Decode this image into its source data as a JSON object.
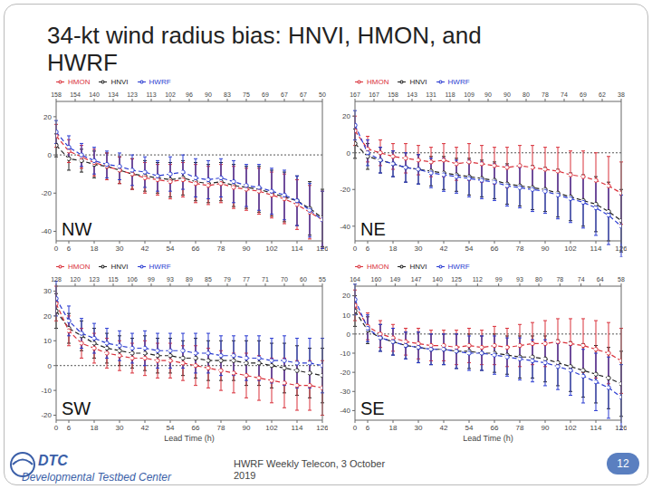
{
  "title": "34-kt wind radius bias: HNVI, HMON, and HWRF",
  "footer": {
    "logo": "DTC",
    "organization": "Developmental Testbed Center",
    "event": "HWRF Weekly Telecon, 3 October 2019",
    "page": 12
  },
  "chart_data": [
    {
      "type": "line",
      "title": "NW",
      "x": [
        0,
        6,
        12,
        18,
        24,
        30,
        36,
        42,
        48,
        54,
        60,
        66,
        72,
        78,
        84,
        90,
        96,
        102,
        108,
        114,
        120,
        126
      ],
      "xlim": [
        0,
        126
      ],
      "xticks": [
        0,
        6,
        18,
        30,
        42,
        54,
        66,
        78,
        90,
        102,
        114,
        126
      ],
      "ylim": [
        -45,
        28
      ],
      "yticks": [
        -40,
        -20,
        0,
        20
      ],
      "reference_y": 0,
      "top_ticks": [
        {
          "value": 0,
          "label": "158"
        },
        {
          "value": 9,
          "label": "154"
        },
        {
          "value": 18,
          "label": "140"
        },
        {
          "value": 27,
          "label": "134"
        },
        {
          "value": 36,
          "label": "123"
        },
        {
          "value": 45,
          "label": "113"
        },
        {
          "value": 54,
          "label": "102"
        },
        {
          "value": 63,
          "label": "96"
        },
        {
          "value": 72,
          "label": "90"
        },
        {
          "value": 81,
          "label": "83"
        },
        {
          "value": 90,
          "label": "75"
        },
        {
          "value": 99,
          "label": "69"
        },
        {
          "value": 108,
          "label": "67"
        },
        {
          "value": 117,
          "label": "67"
        },
        {
          "value": 126,
          "label": "50"
        }
      ],
      "series": [
        {
          "name": "HNVI",
          "color": "#222222",
          "line_style": "dashed",
          "marker": "circle",
          "values": [
            5,
            -2,
            -3,
            -5,
            -6,
            -8,
            -10,
            -11,
            -12,
            -13,
            -12,
            -14,
            -15,
            -14,
            -16,
            -17,
            -18,
            -20,
            -22,
            -24,
            -28,
            -33
          ],
          "errors": [
            6,
            6,
            6,
            7,
            7,
            7,
            8,
            8,
            8,
            9,
            9,
            10,
            10,
            10,
            11,
            11,
            12,
            12,
            13,
            13,
            14,
            15
          ]
        },
        {
          "name": "HMON",
          "color": "#d9303a",
          "line_style": "dashed",
          "marker": "circle",
          "values": [
            10,
            2,
            -1,
            -4,
            -6,
            -8,
            -10,
            -12,
            -13,
            -14,
            -13,
            -15,
            -16,
            -15,
            -17,
            -18,
            -19,
            -21,
            -23,
            -26,
            -30,
            -34
          ],
          "errors": [
            6,
            6,
            6,
            7,
            7,
            7,
            8,
            8,
            8,
            9,
            9,
            10,
            10,
            10,
            11,
            11,
            12,
            12,
            13,
            13,
            14,
            15
          ]
        },
        {
          "name": "HWRF",
          "color": "#2a3bd1",
          "line_style": "dashed",
          "marker": "circle",
          "values": [
            12,
            4,
            0,
            -3,
            -5,
            -6,
            -8,
            -9,
            -11,
            -10,
            -9,
            -12,
            -13,
            -12,
            -14,
            -16,
            -17,
            -19,
            -21,
            -24,
            -29,
            -34
          ],
          "errors": [
            6,
            6,
            6,
            7,
            7,
            7,
            8,
            8,
            8,
            9,
            9,
            10,
            10,
            10,
            11,
            11,
            12,
            12,
            13,
            13,
            14,
            15
          ]
        }
      ]
    },
    {
      "type": "line",
      "title": "NE",
      "x": [
        0,
        6,
        12,
        18,
        24,
        30,
        36,
        42,
        48,
        54,
        60,
        66,
        72,
        78,
        84,
        90,
        96,
        102,
        108,
        114,
        120,
        126
      ],
      "xlim": [
        0,
        126
      ],
      "xticks": [
        0,
        6,
        18,
        30,
        42,
        54,
        66,
        78,
        90,
        102,
        114,
        126
      ],
      "ylim": [
        -48,
        28
      ],
      "yticks": [
        -40,
        -20,
        0,
        20
      ],
      "reference_y": 0,
      "top_ticks": [
        {
          "value": 0,
          "label": "167"
        },
        {
          "value": 9,
          "label": "167"
        },
        {
          "value": 18,
          "label": "158"
        },
        {
          "value": 27,
          "label": "143"
        },
        {
          "value": 36,
          "label": "131"
        },
        {
          "value": 45,
          "label": "118"
        },
        {
          "value": 54,
          "label": "109"
        },
        {
          "value": 63,
          "label": "90"
        },
        {
          "value": 72,
          "label": "90"
        },
        {
          "value": 81,
          "label": "80"
        },
        {
          "value": 90,
          "label": "78"
        },
        {
          "value": 99,
          "label": "74"
        },
        {
          "value": 108,
          "label": "69"
        },
        {
          "value": 117,
          "label": "62"
        },
        {
          "value": 126,
          "label": "38"
        }
      ],
      "series": [
        {
          "name": "HNVI",
          "color": "#222222",
          "line_style": "dashed",
          "marker": "circle",
          "values": [
            5,
            -2,
            -4,
            -6,
            -8,
            -9,
            -10,
            -11,
            -12,
            -13,
            -14,
            -15,
            -17,
            -18,
            -19,
            -20,
            -22,
            -24,
            -26,
            -28,
            -32,
            -37
          ],
          "errors": [
            8,
            7,
            7,
            7,
            8,
            8,
            8,
            9,
            9,
            10,
            10,
            10,
            11,
            11,
            12,
            12,
            13,
            13,
            14,
            15,
            16,
            17
          ]
        },
        {
          "name": "HMON",
          "color": "#d9303a",
          "line_style": "dashed",
          "marker": "circle",
          "values": [
            12,
            2,
            0,
            -2,
            -3,
            -4,
            -5,
            -4,
            -6,
            -5,
            -6,
            -7,
            -8,
            -7,
            -8,
            -9,
            -10,
            -12,
            -13,
            -15,
            -18,
            -22
          ],
          "errors": [
            8,
            7,
            7,
            7,
            8,
            8,
            8,
            9,
            9,
            10,
            10,
            10,
            11,
            11,
            12,
            12,
            13,
            13,
            14,
            15,
            16,
            17
          ]
        },
        {
          "name": "HWRF",
          "color": "#2a3bd1",
          "line_style": "dashed",
          "marker": "circle",
          "values": [
            15,
            0,
            -4,
            -6,
            -8,
            -9,
            -11,
            -12,
            -13,
            -14,
            -15,
            -16,
            -18,
            -19,
            -20,
            -21,
            -23,
            -25,
            -27,
            -30,
            -34,
            -40
          ],
          "errors": [
            8,
            7,
            7,
            7,
            8,
            8,
            8,
            9,
            9,
            10,
            10,
            10,
            11,
            11,
            12,
            12,
            13,
            13,
            14,
            15,
            16,
            17
          ]
        }
      ]
    },
    {
      "type": "line",
      "title": "SW",
      "x_label": "Lead Time (h)",
      "x": [
        0,
        6,
        12,
        18,
        24,
        30,
        36,
        42,
        48,
        54,
        60,
        66,
        72,
        78,
        84,
        90,
        96,
        102,
        108,
        114,
        120,
        126
      ],
      "xlim": [
        0,
        126
      ],
      "xticks": [
        0,
        6,
        18,
        30,
        42,
        54,
        66,
        78,
        90,
        102,
        114,
        126
      ],
      "ylim": [
        -22,
        32
      ],
      "yticks": [
        -20,
        -10,
        0,
        10,
        20,
        30
      ],
      "reference_y": 0,
      "top_ticks": [
        {
          "value": 0,
          "label": "128"
        },
        {
          "value": 9,
          "label": "120"
        },
        {
          "value": 18,
          "label": "123"
        },
        {
          "value": 27,
          "label": "115"
        },
        {
          "value": 36,
          "label": "106"
        },
        {
          "value": 45,
          "label": "99"
        },
        {
          "value": 54,
          "label": "93"
        },
        {
          "value": 63,
          "label": "89"
        },
        {
          "value": 72,
          "label": "85"
        },
        {
          "value": 81,
          "label": "79"
        },
        {
          "value": 90,
          "label": "77"
        },
        {
          "value": 99,
          "label": "71"
        },
        {
          "value": 108,
          "label": "70"
        },
        {
          "value": 117,
          "label": "60"
        },
        {
          "value": 126,
          "label": "55"
        }
      ],
      "series": [
        {
          "name": "HNVI",
          "color": "#222222",
          "line_style": "dashed",
          "marker": "circle",
          "values": [
            22,
            15,
            12,
            9,
            7,
            6,
            5,
            5,
            4,
            4,
            3,
            3,
            2,
            2,
            2,
            1,
            1,
            0,
            -1,
            -2,
            -3,
            -4
          ],
          "errors": [
            7,
            6,
            6,
            6,
            6,
            6,
            6,
            7,
            7,
            7,
            7,
            8,
            8,
            8,
            8,
            9,
            9,
            9,
            10,
            10,
            10,
            11
          ]
        },
        {
          "name": "HMON",
          "color": "#d9303a",
          "line_style": "dashed",
          "marker": "circle",
          "values": [
            25,
            14,
            9,
            7,
            5,
            4,
            3,
            3,
            2,
            2,
            1,
            0,
            -1,
            -2,
            -3,
            -4,
            -5,
            -6,
            -7,
            -8,
            -8,
            -9
          ],
          "errors": [
            7,
            6,
            6,
            6,
            6,
            6,
            6,
            7,
            7,
            7,
            7,
            8,
            8,
            8,
            8,
            9,
            9,
            9,
            10,
            10,
            10,
            11
          ]
        },
        {
          "name": "HWRF",
          "color": "#2a3bd1",
          "line_style": "dashed",
          "marker": "circle",
          "values": [
            27,
            18,
            13,
            11,
            9,
            8,
            7,
            7,
            6,
            6,
            6,
            5,
            5,
            4,
            4,
            3,
            3,
            2,
            2,
            1,
            1,
            0
          ],
          "errors": [
            7,
            6,
            6,
            6,
            6,
            6,
            6,
            7,
            7,
            7,
            7,
            8,
            8,
            8,
            8,
            9,
            9,
            9,
            10,
            10,
            10,
            11
          ]
        }
      ]
    },
    {
      "type": "line",
      "title": "SE",
      "x_label": "Lead Time (h)",
      "x": [
        0,
        6,
        12,
        18,
        24,
        30,
        36,
        42,
        48,
        54,
        60,
        66,
        72,
        78,
        84,
        90,
        96,
        102,
        108,
        114,
        120,
        126
      ],
      "xlim": [
        0,
        126
      ],
      "xticks": [
        0,
        6,
        18,
        30,
        42,
        54,
        66,
        78,
        90,
        102,
        114,
        126
      ],
      "ylim": [
        -45,
        25
      ],
      "yticks": [
        -40,
        -30,
        -20,
        -10,
        0,
        10,
        20
      ],
      "reference_y": 0,
      "top_ticks": [
        {
          "value": 0,
          "label": "164"
        },
        {
          "value": 10,
          "label": "160"
        },
        {
          "value": 19,
          "label": "149"
        },
        {
          "value": 29,
          "label": "147"
        },
        {
          "value": 39,
          "label": "140"
        },
        {
          "value": 48,
          "label": "125"
        },
        {
          "value": 58,
          "label": "112"
        },
        {
          "value": 68,
          "label": "99"
        },
        {
          "value": 78,
          "label": "93"
        },
        {
          "value": 87,
          "label": "80"
        },
        {
          "value": 97,
          "label": "78"
        },
        {
          "value": 107,
          "label": "74"
        },
        {
          "value": 116,
          "label": "64"
        },
        {
          "value": 126,
          "label": "58"
        }
      ],
      "series": [
        {
          "name": "HNVI",
          "color": "#222222",
          "line_style": "dashed",
          "marker": "circle",
          "values": [
            12,
            2,
            -2,
            -4,
            -6,
            -7,
            -8,
            -8,
            -9,
            -9,
            -10,
            -10,
            -11,
            -12,
            -12,
            -13,
            -15,
            -17,
            -19,
            -21,
            -23,
            -26
          ],
          "errors": [
            8,
            7,
            7,
            7,
            7,
            8,
            8,
            8,
            9,
            9,
            9,
            10,
            10,
            11,
            11,
            12,
            12,
            13,
            14,
            15,
            16,
            17
          ]
        },
        {
          "name": "HMON",
          "color": "#d9303a",
          "line_style": "dashed",
          "marker": "circle",
          "values": [
            15,
            4,
            0,
            -2,
            -4,
            -5,
            -6,
            -6,
            -7,
            -6,
            -7,
            -6,
            -7,
            -6,
            -5,
            -5,
            -4,
            -5,
            -6,
            -8,
            -10,
            -14
          ],
          "errors": [
            8,
            7,
            7,
            7,
            7,
            8,
            8,
            8,
            9,
            9,
            9,
            10,
            10,
            11,
            11,
            12,
            12,
            13,
            14,
            15,
            16,
            17
          ]
        },
        {
          "name": "HWRF",
          "color": "#2a3bd1",
          "line_style": "dashed",
          "marker": "circle",
          "values": [
            18,
            3,
            -2,
            -4,
            -6,
            -7,
            -8,
            -8,
            -9,
            -10,
            -10,
            -11,
            -12,
            -13,
            -14,
            -15,
            -17,
            -19,
            -22,
            -25,
            -28,
            -33
          ],
          "errors": [
            8,
            7,
            7,
            7,
            7,
            8,
            8,
            8,
            9,
            9,
            9,
            10,
            10,
            11,
            11,
            12,
            12,
            13,
            14,
            15,
            16,
            17
          ]
        }
      ]
    }
  ]
}
